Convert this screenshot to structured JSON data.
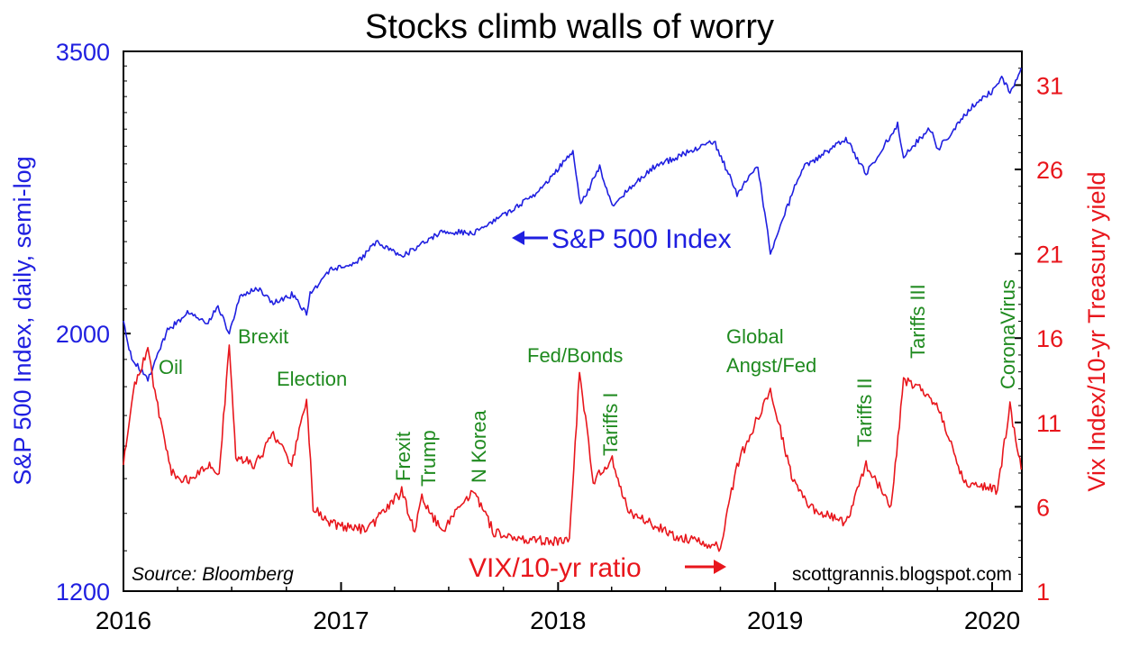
{
  "chart_data": {
    "type": "line",
    "title": "Stocks climb walls of worry",
    "x_ticks": [
      "2016",
      "2017",
      "2018",
      "2019",
      "2020"
    ],
    "xlim": [
      "2016-01-01",
      "2020-02-20"
    ],
    "left_axis": {
      "label": "S&P 500 Index, daily, semi-log",
      "scale": "log",
      "ylim": [
        1200,
        3500
      ],
      "ticks": [
        1200,
        2000,
        3500
      ],
      "color": "#1f1fe0"
    },
    "right_axis": {
      "label": "Vix Index/10-yr Treasury yield",
      "scale": "linear",
      "ylim": [
        1,
        33
      ],
      "ticks": [
        1,
        6,
        11,
        16,
        21,
        26,
        31
      ],
      "color": "#e8161c"
    },
    "series": [
      {
        "name": "S&P 500 Index",
        "axis": "left",
        "color": "#1f1fe0",
        "label_text": "S&P 500 Index",
        "points": [
          [
            "2016-01-01",
            2040
          ],
          [
            "2016-01-15",
            1900
          ],
          [
            "2016-02-11",
            1830
          ],
          [
            "2016-03-15",
            2010
          ],
          [
            "2016-04-20",
            2090
          ],
          [
            "2016-05-20",
            2040
          ],
          [
            "2016-06-08",
            2110
          ],
          [
            "2016-06-27",
            2000
          ],
          [
            "2016-07-15",
            2160
          ],
          [
            "2016-08-15",
            2185
          ],
          [
            "2016-09-09",
            2125
          ],
          [
            "2016-10-10",
            2160
          ],
          [
            "2016-11-04",
            2085
          ],
          [
            "2016-11-10",
            2165
          ],
          [
            "2016-12-13",
            2270
          ],
          [
            "2017-01-26",
            2295
          ],
          [
            "2017-03-01",
            2395
          ],
          [
            "2017-04-13",
            2330
          ],
          [
            "2017-06-19",
            2450
          ],
          [
            "2017-08-11",
            2440
          ],
          [
            "2017-10-02",
            2530
          ],
          [
            "2017-11-30",
            2650
          ],
          [
            "2018-01-26",
            2872
          ],
          [
            "2018-02-08",
            2580
          ],
          [
            "2018-03-12",
            2785
          ],
          [
            "2018-04-02",
            2580
          ],
          [
            "2018-06-12",
            2785
          ],
          [
            "2018-07-25",
            2845
          ],
          [
            "2018-09-20",
            2930
          ],
          [
            "2018-10-29",
            2640
          ],
          [
            "2018-12-03",
            2790
          ],
          [
            "2018-12-24",
            2350
          ],
          [
            "2019-02-15",
            2775
          ],
          [
            "2019-04-30",
            2945
          ],
          [
            "2019-06-03",
            2745
          ],
          [
            "2019-07-26",
            3025
          ],
          [
            "2019-08-05",
            2845
          ],
          [
            "2019-09-18",
            3005
          ],
          [
            "2019-10-02",
            2885
          ],
          [
            "2019-11-29",
            3140
          ],
          [
            "2019-12-31",
            3230
          ],
          [
            "2020-01-17",
            3330
          ],
          [
            "2020-01-31",
            3225
          ],
          [
            "2020-02-19",
            3386
          ]
        ]
      },
      {
        "name": "VIX/10-yr ratio",
        "axis": "right",
        "color": "#e8161c",
        "label_text": "VIX/10-yr ratio",
        "points": [
          [
            "2016-01-01",
            8.5
          ],
          [
            "2016-01-12",
            11.5
          ],
          [
            "2016-01-20",
            13.2
          ],
          [
            "2016-02-11",
            15.3
          ],
          [
            "2016-03-01",
            11.5
          ],
          [
            "2016-03-22",
            8.0
          ],
          [
            "2016-04-20",
            7.5
          ],
          [
            "2016-05-20",
            8.5
          ],
          [
            "2016-06-10",
            8.0
          ],
          [
            "2016-06-27",
            15.5
          ],
          [
            "2016-07-08",
            9.0
          ],
          [
            "2016-08-10",
            8.5
          ],
          [
            "2016-09-09",
            10.3
          ],
          [
            "2016-10-10",
            8.5
          ],
          [
            "2016-11-04",
            12.5
          ],
          [
            "2016-11-15",
            6.0
          ],
          [
            "2016-12-10",
            5.0
          ],
          [
            "2017-02-15",
            4.6
          ],
          [
            "2017-04-13",
            6.9
          ],
          [
            "2017-05-05",
            4.6
          ],
          [
            "2017-05-17",
            6.5
          ],
          [
            "2017-06-20",
            4.5
          ],
          [
            "2017-08-10",
            7.0
          ],
          [
            "2017-09-15",
            4.5
          ],
          [
            "2017-11-15",
            4.0
          ],
          [
            "2018-01-20",
            4.0
          ],
          [
            "2018-02-06",
            14.0
          ],
          [
            "2018-03-01",
            7.5
          ],
          [
            "2018-04-02",
            8.8
          ],
          [
            "2018-05-01",
            5.6
          ],
          [
            "2018-06-20",
            4.8
          ],
          [
            "2018-07-20",
            4.2
          ],
          [
            "2018-10-01",
            3.6
          ],
          [
            "2018-10-29",
            8.5
          ],
          [
            "2018-12-24",
            13.0
          ],
          [
            "2019-01-31",
            7.5
          ],
          [
            "2019-03-01",
            6.0
          ],
          [
            "2019-04-30",
            5.0
          ],
          [
            "2019-06-03",
            8.5
          ],
          [
            "2019-07-15",
            6.0
          ],
          [
            "2019-08-05",
            13.5
          ],
          [
            "2019-08-25",
            13.2
          ],
          [
            "2019-10-02",
            12.0
          ],
          [
            "2019-11-15",
            7.5
          ],
          [
            "2020-01-10",
            7.0
          ],
          [
            "2020-01-31",
            12.0
          ],
          [
            "2020-02-19",
            8.2
          ]
        ]
      }
    ],
    "annotations": [
      {
        "text": "Oil",
        "date": "2016-02-11",
        "rotate": 0
      },
      {
        "text": "Brexit",
        "date": "2016-06-27",
        "rotate": 0
      },
      {
        "text": "Election",
        "date": "2016-11-08",
        "rotate": 0
      },
      {
        "text": "Frexit",
        "date": "2017-04-13",
        "rotate": -90
      },
      {
        "text": "Trump",
        "date": "2017-05-17",
        "rotate": -90
      },
      {
        "text": "N Korea",
        "date": "2017-08-10",
        "rotate": -90
      },
      {
        "text": "Fed/Bonds",
        "date": "2018-02-06",
        "rotate": 0
      },
      {
        "text": "Tariffs I",
        "date": "2018-04-02",
        "rotate": -90
      },
      {
        "text": "Global",
        "date": "2018-12-24",
        "rotate": 0
      },
      {
        "text": "Angst/Fed",
        "date": "2018-12-24",
        "rotate": 0
      },
      {
        "text": "Tariffs II",
        "date": "2019-05-20",
        "rotate": -90
      },
      {
        "text": "Tariffs III",
        "date": "2019-08-05",
        "rotate": -90
      },
      {
        "text": "CoronaVirus",
        "date": "2020-01-31",
        "rotate": -90
      }
    ],
    "source_note": "Source: Bloomberg",
    "credit": "scottgrannis.blogspot.com",
    "grid": false
  }
}
